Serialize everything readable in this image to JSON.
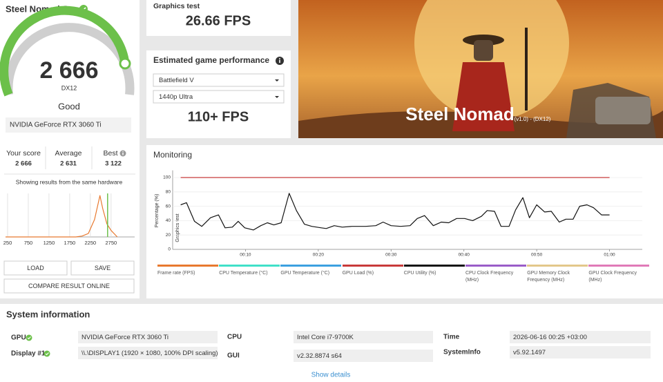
{
  "score_panel": {
    "title": "Steel Nomad Score",
    "score": "2 666",
    "api": "DX12",
    "rating": "Good",
    "gpu": "NVIDIA GeForce RTX 3060 Ti",
    "your_score": {
      "label": "Your score",
      "value": "2 666"
    },
    "average": {
      "label": "Average",
      "value": "2 631"
    },
    "best": {
      "label": "Best",
      "value": "3 122"
    },
    "hardware_note": "Showing results from the same hardware",
    "buttons": [
      "LOAD",
      "SAVE",
      "COMPARE RESULT ONLINE"
    ]
  },
  "graphics_test": {
    "label": "Graphics test",
    "value": "26.66 FPS"
  },
  "estimated": {
    "title": "Estimated game performance",
    "game": "Battlefield V",
    "preset": "1440p Ultra",
    "value": "110+ FPS"
  },
  "hero": {
    "title": "Steel Nomad",
    "subtitle": "(v1.0) - (DX12)"
  },
  "chart_data": [
    {
      "type": "line",
      "x": [
        200,
        1900,
        2050,
        2200,
        2350,
        2480,
        2550,
        2650,
        2750,
        2900
      ],
      "values": [
        0,
        0,
        2,
        8,
        40,
        95,
        65,
        30,
        15,
        0
      ],
      "color": "#e8792f",
      "xlim": [
        200,
        3320
      ],
      "xticks": [
        250,
        750,
        1250,
        1750,
        2250,
        2750
      ],
      "ylim": [
        0,
        100
      ],
      "grid": true,
      "marker": {
        "value": 2666,
        "color": "#6cc04a"
      }
    },
    {
      "type": "line",
      "title": "Monitoring",
      "ylabel": "Percentage (%)",
      "annotation": "Graphics test",
      "x": [
        1.1,
        1.9,
        3.0,
        4.0,
        5.2,
        6.3,
        7.2,
        8.2,
        9.0,
        9.9,
        11.1,
        12.1,
        13.0,
        13.9,
        14.9,
        16.0,
        17.0,
        18.1,
        19.1,
        20.4,
        21.1,
        22.2,
        23.3,
        24.6,
        26.5,
        27.9,
        28.9,
        30.0,
        31.3,
        32.6,
        33.6,
        34.6,
        35.8,
        36.9,
        37.9,
        39.0,
        40.1,
        41.2,
        42.4,
        43.2,
        44.2,
        45.1,
        46.2,
        47.1,
        48.1,
        49.0,
        50.0,
        51.1,
        52.0,
        53.1,
        54.0,
        55.0,
        55.9,
        56.9,
        57.8,
        58.9,
        60.0
      ],
      "xlim": [
        0,
        64.5
      ],
      "xticks": [
        {
          "value": 10,
          "label": "00:10"
        },
        {
          "value": 20,
          "label": "00:20"
        },
        {
          "value": 30,
          "label": "00:30"
        },
        {
          "value": 40,
          "label": "00:40"
        },
        {
          "value": 50,
          "label": "00:50"
        },
        {
          "value": 60,
          "label": "01:00"
        }
      ],
      "ylim": [
        0,
        110
      ],
      "yticks": [
        0,
        20,
        40,
        60,
        80,
        100
      ],
      "grid": true,
      "series": [
        {
          "name": "Frame rate (FPS)",
          "color": "#e8792f"
        },
        {
          "name": "CPU Temperature (°C)",
          "color": "#40e0c8"
        },
        {
          "name": "GPU Temperature (°C)",
          "color": "#3ba0e0"
        },
        {
          "name": "GPU Load (%)",
          "color": "#c83a3a",
          "values": [
            100,
            100,
            100,
            100,
            100,
            100,
            100,
            100,
            100,
            100,
            100,
            100,
            100,
            100,
            100,
            100,
            100,
            100,
            100,
            100,
            100,
            100,
            100,
            100,
            100,
            100,
            100,
            100,
            100,
            100,
            100,
            100,
            100,
            100,
            100,
            100,
            100,
            100,
            100,
            100,
            100,
            100,
            100,
            100,
            100,
            100,
            100,
            100,
            100,
            100,
            100,
            100,
            100,
            100,
            100,
            100,
            100
          ]
        },
        {
          "name": "CPU Utility (%)",
          "color": "#111111",
          "values": [
            62,
            65,
            39,
            32,
            44,
            48,
            30,
            31,
            39,
            30,
            27,
            33,
            37,
            34,
            37,
            78,
            54,
            35,
            32,
            30,
            29,
            33,
            31,
            32,
            32,
            33,
            38,
            33,
            32,
            33,
            43,
            47,
            33,
            38,
            37,
            43,
            43,
            40,
            46,
            54,
            53,
            32,
            32,
            55,
            72,
            44,
            62,
            52,
            53,
            38,
            42,
            42,
            60,
            62,
            58,
            48,
            48
          ]
        },
        {
          "name": "CPU Clock Frequency (MHz)",
          "color": "#9a5cc8"
        },
        {
          "name": "GPU Memory Clock Frequency (MHz)",
          "color": "#e3c78a"
        },
        {
          "name": "GPU Clock Frequency (MHz)",
          "color": "#e07ab8"
        }
      ]
    }
  ],
  "system_info": {
    "title": "System information",
    "gpu": {
      "label": "GPU",
      "value": "NVIDIA GeForce RTX 3060 Ti"
    },
    "display": {
      "label": "Display #1",
      "value": "\\\\.\\DISPLAY1 (1920 × 1080, 100% DPI scaling)"
    },
    "cpu": {
      "label": "CPU",
      "value": "Intel Core i7-9700K"
    },
    "gui": {
      "label": "GUI",
      "value": "v2.32.8874 s64"
    },
    "time": {
      "label": "Time",
      "value": "2026-06-16 00:25 +03:00"
    },
    "systeminfo": {
      "label": "SystemInfo",
      "value": "v5.92.1497"
    },
    "link": "Show details"
  }
}
